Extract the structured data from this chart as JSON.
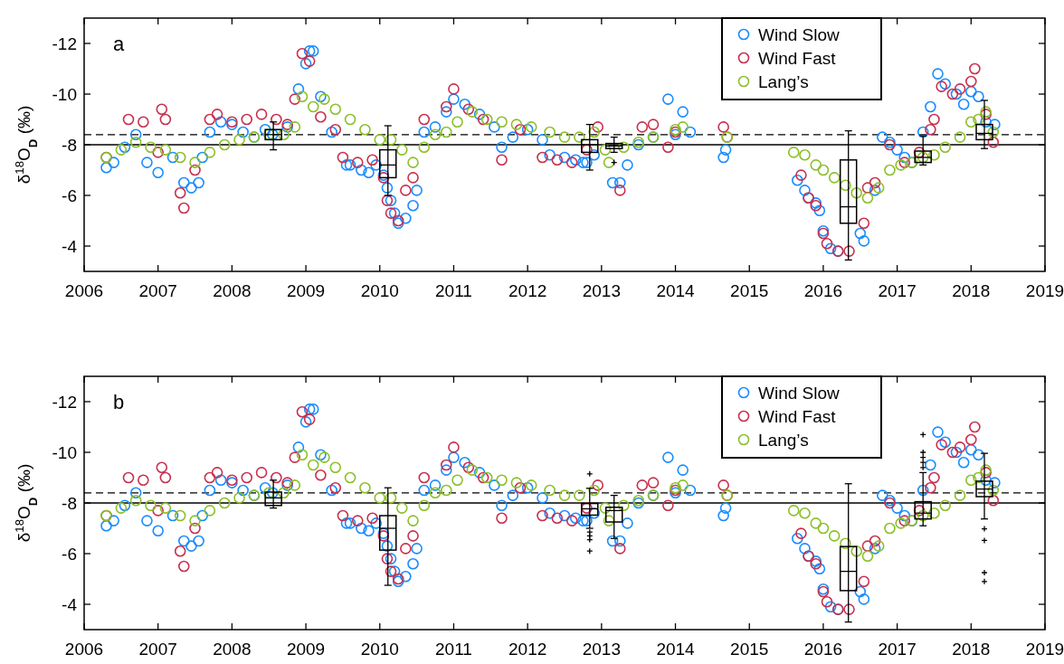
{
  "chart_data": [
    {
      "type": "scatter",
      "ylabel": "δ$^{18}$O$_{D}$ (‰)",
      "xlim": [
        2006,
        2019
      ],
      "xticks": [
        2006,
        2007,
        2008,
        2009,
        2010,
        2011,
        2012,
        2013,
        2014,
        2015,
        2016,
        2017,
        2018,
        2019
      ],
      "ylim": [
        -3,
        -13
      ],
      "yticks": [
        -12,
        -10,
        -8,
        -6,
        -4
      ],
      "marker": "circle",
      "legend": "top right",
      "annotations": [
        "a"
      ],
      "ref_lines": [
        {
          "axis": "y",
          "value": -8,
          "line_style": "solid",
          "color": "#000000"
        },
        {
          "axis": "y",
          "value": -8.4,
          "line_style": "dashed",
          "color": "#000000"
        }
      ],
      "series": [
        {
          "name": "Wind Slow",
          "color": "#1a8cff",
          "x": [
            2006.3,
            2006.4,
            2006.55,
            2006.7,
            2006.85,
            2007.0,
            2007.2,
            2007.35,
            2007.45,
            2007.55,
            2007.6,
            2007.7,
            2007.85,
            2008.0,
            2008.15,
            2008.3,
            2008.45,
            2008.55,
            2008.75,
            2008.9,
            2009.0,
            2009.05,
            2009.1,
            2009.2,
            2009.35,
            2009.55,
            2009.6,
            2009.75,
            2009.85,
            2009.95,
            2010.05,
            2010.1,
            2010.15,
            2010.2,
            2010.25,
            2010.35,
            2010.45,
            2010.5,
            2010.6,
            2010.75,
            2010.9,
            2011.0,
            2011.15,
            2011.35,
            2011.55,
            2011.65,
            2011.8,
            2012.0,
            2012.2,
            2012.3,
            2012.5,
            2012.65,
            2012.75,
            2012.8,
            2012.9,
            2013.15,
            2013.25,
            2013.35,
            2013.5,
            2013.7,
            2013.9,
            2014.0,
            2014.1,
            2014.2,
            2014.65,
            2014.68,
            2015.65,
            2015.75,
            2015.8,
            2015.9,
            2015.95,
            2016.0,
            2016.1,
            2016.2,
            2016.5,
            2016.55,
            2016.7,
            2016.8,
            2016.9,
            2017.0,
            2017.1,
            2017.2,
            2017.35,
            2017.45,
            2017.55,
            2017.65,
            2017.8,
            2017.9,
            2018.0,
            2018.1,
            2018.2,
            2018.32
          ],
          "values": [
            -7.1,
            -7.3,
            -7.9,
            -8.4,
            -7.3,
            -6.9,
            -7.5,
            -6.5,
            -6.3,
            -6.5,
            -7.5,
            -8.5,
            -8.9,
            -8.8,
            -8.5,
            -8.3,
            -8.6,
            -8.4,
            -8.7,
            -10.2,
            -11.2,
            -11.7,
            -11.7,
            -9.9,
            -8.5,
            -7.2,
            -7.2,
            -7.0,
            -6.9,
            -7.2,
            -6.8,
            -6.3,
            -5.8,
            -5.3,
            -4.9,
            -5.1,
            -5.6,
            -6.2,
            -8.5,
            -8.7,
            -9.3,
            -9.8,
            -9.6,
            -9.2,
            -8.7,
            -7.9,
            -8.3,
            -8.6,
            -8.2,
            -7.6,
            -7.5,
            -7.4,
            -7.3,
            -7.3,
            -7.6,
            -6.5,
            -6.5,
            -7.2,
            -8.0,
            -8.3,
            -9.8,
            -8.4,
            -9.3,
            -8.5,
            -7.5,
            -7.8,
            -6.6,
            -6.2,
            -5.9,
            -5.7,
            -5.4,
            -4.6,
            -3.9,
            -3.8,
            -4.5,
            -4.2,
            -6.2,
            -8.3,
            -8.1,
            -7.8,
            -7.5,
            -7.3,
            -8.5,
            -9.5,
            -10.8,
            -10.4,
            -10.0,
            -9.6,
            -10.1,
            -9.9,
            -8.9,
            -8.8
          ]
        },
        {
          "name": "Wind Fast",
          "color": "#c8304f",
          "x": [
            2006.3,
            2006.6,
            2006.8,
            2007.0,
            2007.05,
            2007.1,
            2007.3,
            2007.35,
            2007.5,
            2007.7,
            2007.8,
            2008.0,
            2008.2,
            2008.4,
            2008.6,
            2008.75,
            2008.85,
            2008.95,
            2009.05,
            2009.2,
            2009.4,
            2009.5,
            2009.7,
            2009.9,
            2010.05,
            2010.1,
            2010.15,
            2010.25,
            2010.35,
            2010.45,
            2010.6,
            2010.9,
            2011.0,
            2011.2,
            2011.4,
            2011.65,
            2011.9,
            2012.2,
            2012.4,
            2012.6,
            2012.8,
            2012.95,
            2013.25,
            2013.55,
            2013.7,
            2013.9,
            2014.0,
            2014.65,
            2014.7,
            2015.7,
            2015.8,
            2015.9,
            2016.0,
            2016.05,
            2016.2,
            2016.35,
            2016.55,
            2016.6,
            2016.7,
            2016.9,
            2017.1,
            2017.3,
            2017.45,
            2017.5,
            2017.6,
            2017.75,
            2017.85,
            2018.0,
            2018.05,
            2018.2,
            2018.3
          ],
          "values": [
            -7.5,
            -9.0,
            -8.9,
            -7.7,
            -9.4,
            -9.0,
            -6.1,
            -5.5,
            -7.0,
            -9.0,
            -9.2,
            -8.9,
            -9.0,
            -9.2,
            -9.0,
            -8.8,
            -9.8,
            -11.6,
            -11.3,
            -9.1,
            -8.6,
            -7.5,
            -7.3,
            -7.4,
            -6.7,
            -5.8,
            -5.3,
            -5.0,
            -6.2,
            -6.7,
            -9.0,
            -9.5,
            -10.2,
            -9.4,
            -9.0,
            -7.4,
            -8.6,
            -7.5,
            -7.4,
            -7.3,
            -7.8,
            -8.7,
            -6.2,
            -8.7,
            -8.8,
            -7.9,
            -8.5,
            -8.7,
            -8.3,
            -6.8,
            -5.9,
            -5.6,
            -4.5,
            -4.1,
            -3.8,
            -3.8,
            -4.9,
            -6.3,
            -6.5,
            -8.0,
            -7.3,
            -7.7,
            -8.6,
            -9.0,
            -10.3,
            -10.0,
            -10.2,
            -10.5,
            -11.0,
            -9.2,
            -8.1
          ]
        },
        {
          "name": "Lang’s",
          "color": "#8cbf2a",
          "x": [
            2006.3,
            2006.5,
            2006.7,
            2006.9,
            2007.1,
            2007.3,
            2007.5,
            2007.7,
            2007.9,
            2008.1,
            2008.3,
            2008.5,
            2008.7,
            2008.85,
            2008.95,
            2009.1,
            2009.25,
            2009.4,
            2009.6,
            2009.8,
            2010.0,
            2010.15,
            2010.3,
            2010.45,
            2010.6,
            2010.75,
            2010.9,
            2011.05,
            2011.25,
            2011.45,
            2011.65,
            2011.85,
            2012.05,
            2012.3,
            2012.5,
            2012.7,
            2012.9,
            2013.05,
            2013.1,
            2013.3,
            2013.5,
            2013.7,
            2014.0,
            2014.1,
            2014.7,
            2015.6,
            2015.75,
            2015.9,
            2016.0,
            2016.15,
            2016.3,
            2016.45,
            2016.6,
            2016.75,
            2016.9,
            2017.05,
            2017.2,
            2017.35,
            2017.5,
            2017.65,
            2017.85,
            2018.0,
            2018.1,
            2018.2,
            2018.3
          ],
          "values": [
            -7.5,
            -7.8,
            -8.1,
            -7.9,
            -7.8,
            -7.5,
            -7.3,
            -7.7,
            -8.0,
            -8.2,
            -8.3,
            -8.4,
            -8.4,
            -8.7,
            -9.9,
            -9.5,
            -9.8,
            -9.4,
            -9.0,
            -8.6,
            -8.2,
            -8.2,
            -7.8,
            -7.3,
            -7.9,
            -8.4,
            -8.5,
            -8.9,
            -9.3,
            -9.0,
            -8.9,
            -8.8,
            -8.7,
            -8.5,
            -8.3,
            -8.3,
            -8.5,
            -7.8,
            -7.3,
            -7.9,
            -8.1,
            -8.3,
            -8.6,
            -8.7,
            -8.3,
            -7.7,
            -7.6,
            -7.2,
            -7.0,
            -6.7,
            -6.4,
            -6.1,
            -5.9,
            -6.3,
            -7.0,
            -7.2,
            -7.3,
            -7.5,
            -7.6,
            -7.9,
            -8.3,
            -8.9,
            -9.0,
            -9.3,
            -8.5
          ]
        },
        {
          "type": "box",
          "color": "#000000",
          "x": [
            2008.56,
            2010.11,
            2012.84,
            2013.17,
            2016.34,
            2017.35,
            2018.18
          ],
          "boxes": [
            {
              "low": -7.8,
              "q1": -8.2,
              "median": -8.4,
              "q3": -8.6,
              "high": -8.9
            },
            {
              "low": -6.0,
              "q1": -6.7,
              "median": -7.2,
              "q3": -7.8,
              "high": -8.75
            },
            {
              "low": -7.0,
              "q1": -7.7,
              "median": -8.0,
              "q3": -8.2,
              "high": -8.8
            },
            {
              "low": -7.7,
              "q1": -7.85,
              "median": -7.95,
              "q3": -8.05,
              "high": -8.3,
              "outliers": [
                -7.3
              ]
            },
            {
              "low": -3.45,
              "q1": -4.9,
              "median": -5.55,
              "q3": -7.4,
              "high": -8.55
            },
            {
              "low": -7.2,
              "q1": -7.3,
              "median": -7.5,
              "q3": -7.75,
              "high": -8.35
            },
            {
              "low": -7.85,
              "q1": -8.2,
              "median": -8.45,
              "q3": -8.8,
              "high": -9.75
            }
          ]
        }
      ]
    },
    {
      "type": "scatter",
      "ylabel": "δ$^{18}$O$_{D}$ (‰)",
      "xlim": [
        2006,
        2019
      ],
      "xticks": [
        2006,
        2007,
        2008,
        2009,
        2010,
        2011,
        2012,
        2013,
        2014,
        2015,
        2016,
        2017,
        2018,
        2019
      ],
      "ylim": [
        -3,
        -13
      ],
      "yticks": [
        -12,
        -10,
        -8,
        -6,
        -4
      ],
      "marker": "circle",
      "legend": "top right",
      "annotations": [
        "b"
      ],
      "ref_lines": [
        {
          "axis": "y",
          "value": -8,
          "line_style": "solid",
          "color": "#000000"
        },
        {
          "axis": "y",
          "value": -8.4,
          "line_style": "dashed",
          "color": "#000000"
        }
      ],
      "series": [
        {
          "name": "Wind Slow",
          "color": "#1a8cff",
          "x": [
            2006.3,
            2006.4,
            2006.55,
            2006.7,
            2006.85,
            2007.0,
            2007.2,
            2007.35,
            2007.45,
            2007.55,
            2007.6,
            2007.7,
            2007.85,
            2008.0,
            2008.15,
            2008.3,
            2008.45,
            2008.55,
            2008.75,
            2008.9,
            2009.0,
            2009.05,
            2009.1,
            2009.2,
            2009.35,
            2009.55,
            2009.6,
            2009.75,
            2009.85,
            2009.95,
            2010.05,
            2010.1,
            2010.15,
            2010.2,
            2010.25,
            2010.35,
            2010.45,
            2010.5,
            2010.6,
            2010.75,
            2010.9,
            2011.0,
            2011.15,
            2011.35,
            2011.55,
            2011.65,
            2011.8,
            2012.0,
            2012.2,
            2012.3,
            2012.5,
            2012.65,
            2012.75,
            2012.8,
            2012.9,
            2013.15,
            2013.25,
            2013.35,
            2013.5,
            2013.7,
            2013.9,
            2014.0,
            2014.1,
            2014.2,
            2014.65,
            2014.68,
            2015.65,
            2015.75,
            2015.8,
            2015.9,
            2015.95,
            2016.0,
            2016.1,
            2016.2,
            2016.5,
            2016.55,
            2016.7,
            2016.8,
            2016.9,
            2017.0,
            2017.1,
            2017.2,
            2017.35,
            2017.45,
            2017.55,
            2017.65,
            2017.8,
            2017.9,
            2018.0,
            2018.1,
            2018.2,
            2018.32
          ],
          "values": [
            -7.1,
            -7.3,
            -7.9,
            -8.4,
            -7.3,
            -6.9,
            -7.5,
            -6.5,
            -6.3,
            -6.5,
            -7.5,
            -8.5,
            -8.9,
            -8.8,
            -8.5,
            -8.3,
            -8.6,
            -8.4,
            -8.7,
            -10.2,
            -11.2,
            -11.7,
            -11.7,
            -9.9,
            -8.5,
            -7.2,
            -7.2,
            -7.0,
            -6.9,
            -7.2,
            -6.8,
            -6.3,
            -5.8,
            -5.3,
            -4.9,
            -5.1,
            -5.6,
            -6.2,
            -8.5,
            -8.7,
            -9.3,
            -9.8,
            -9.6,
            -9.2,
            -8.7,
            -7.9,
            -8.3,
            -8.6,
            -8.2,
            -7.6,
            -7.5,
            -7.4,
            -7.3,
            -7.3,
            -7.6,
            -6.5,
            -6.5,
            -7.2,
            -8.0,
            -8.3,
            -9.8,
            -8.4,
            -9.3,
            -8.5,
            -7.5,
            -7.8,
            -6.6,
            -6.2,
            -5.9,
            -5.7,
            -5.4,
            -4.6,
            -3.9,
            -3.8,
            -4.5,
            -4.2,
            -6.2,
            -8.3,
            -8.1,
            -7.8,
            -7.5,
            -7.3,
            -8.5,
            -9.5,
            -10.8,
            -10.4,
            -10.0,
            -9.6,
            -10.1,
            -9.9,
            -8.9,
            -8.8
          ]
        },
        {
          "name": "Wind Fast",
          "color": "#c8304f",
          "x": [
            2006.3,
            2006.6,
            2006.8,
            2007.0,
            2007.05,
            2007.1,
            2007.3,
            2007.35,
            2007.5,
            2007.7,
            2007.8,
            2008.0,
            2008.2,
            2008.4,
            2008.6,
            2008.75,
            2008.85,
            2008.95,
            2009.05,
            2009.2,
            2009.4,
            2009.5,
            2009.7,
            2009.9,
            2010.05,
            2010.1,
            2010.15,
            2010.25,
            2010.35,
            2010.45,
            2010.6,
            2010.9,
            2011.0,
            2011.2,
            2011.4,
            2011.65,
            2011.9,
            2012.2,
            2012.4,
            2012.6,
            2012.8,
            2012.95,
            2013.25,
            2013.55,
            2013.7,
            2013.9,
            2014.0,
            2014.65,
            2014.7,
            2015.7,
            2015.8,
            2015.9,
            2016.0,
            2016.05,
            2016.2,
            2016.35,
            2016.55,
            2016.6,
            2016.7,
            2016.9,
            2017.1,
            2017.3,
            2017.45,
            2017.5,
            2017.6,
            2017.75,
            2017.85,
            2018.0,
            2018.05,
            2018.2,
            2018.3
          ],
          "values": [
            -7.5,
            -9.0,
            -8.9,
            -7.7,
            -9.4,
            -9.0,
            -6.1,
            -5.5,
            -7.0,
            -9.0,
            -9.2,
            -8.9,
            -9.0,
            -9.2,
            -9.0,
            -8.8,
            -9.8,
            -11.6,
            -11.3,
            -9.1,
            -8.6,
            -7.5,
            -7.3,
            -7.4,
            -6.7,
            -5.8,
            -5.3,
            -5.0,
            -6.2,
            -6.7,
            -9.0,
            -9.5,
            -10.2,
            -9.4,
            -9.0,
            -7.4,
            -8.6,
            -7.5,
            -7.4,
            -7.3,
            -7.8,
            -8.7,
            -6.2,
            -8.7,
            -8.8,
            -7.9,
            -8.5,
            -8.7,
            -8.3,
            -6.8,
            -5.9,
            -5.6,
            -4.5,
            -4.1,
            -3.8,
            -3.8,
            -4.9,
            -6.3,
            -6.5,
            -8.0,
            -7.3,
            -7.7,
            -8.6,
            -9.0,
            -10.3,
            -10.0,
            -10.2,
            -10.5,
            -11.0,
            -9.2,
            -8.1
          ]
        },
        {
          "name": "Lang’s",
          "color": "#8cbf2a",
          "x": [
            2006.3,
            2006.5,
            2006.7,
            2006.9,
            2007.1,
            2007.3,
            2007.5,
            2007.7,
            2007.9,
            2008.1,
            2008.3,
            2008.5,
            2008.7,
            2008.85,
            2008.95,
            2009.1,
            2009.25,
            2009.4,
            2009.6,
            2009.8,
            2010.0,
            2010.15,
            2010.3,
            2010.45,
            2010.6,
            2010.75,
            2010.9,
            2011.05,
            2011.25,
            2011.45,
            2011.65,
            2011.85,
            2012.05,
            2012.3,
            2012.5,
            2012.7,
            2012.9,
            2013.05,
            2013.1,
            2013.3,
            2013.5,
            2013.7,
            2014.0,
            2014.1,
            2014.7,
            2015.6,
            2015.75,
            2015.9,
            2016.0,
            2016.15,
            2016.3,
            2016.45,
            2016.6,
            2016.75,
            2016.9,
            2017.05,
            2017.2,
            2017.35,
            2017.5,
            2017.65,
            2017.85,
            2018.0,
            2018.1,
            2018.2,
            2018.3
          ],
          "values": [
            -7.5,
            -7.8,
            -8.1,
            -7.9,
            -7.8,
            -7.5,
            -7.3,
            -7.7,
            -8.0,
            -8.2,
            -8.3,
            -8.4,
            -8.4,
            -8.7,
            -9.9,
            -9.5,
            -9.8,
            -9.4,
            -9.0,
            -8.6,
            -8.2,
            -8.2,
            -7.8,
            -7.3,
            -7.9,
            -8.4,
            -8.5,
            -8.9,
            -9.3,
            -9.0,
            -8.9,
            -8.8,
            -8.7,
            -8.5,
            -8.3,
            -8.3,
            -8.5,
            -7.8,
            -7.3,
            -7.9,
            -8.1,
            -8.3,
            -8.6,
            -8.7,
            -8.3,
            -7.7,
            -7.6,
            -7.2,
            -7.0,
            -6.7,
            -6.4,
            -6.1,
            -5.9,
            -6.3,
            -7.0,
            -7.2,
            -7.3,
            -7.5,
            -7.6,
            -7.9,
            -8.3,
            -8.9,
            -9.0,
            -9.3,
            -8.5
          ]
        },
        {
          "type": "box",
          "color": "#000000",
          "x": [
            2008.56,
            2010.11,
            2012.84,
            2013.17,
            2016.34,
            2017.35,
            2018.18
          ],
          "boxes": [
            {
              "low": -7.8,
              "q1": -7.9,
              "median": -8.2,
              "q3": -8.43,
              "high": -8.9
            },
            {
              "low": -4.75,
              "q1": -6.14,
              "median": -7.0,
              "q3": -7.5,
              "high": -8.6
            },
            {
              "low": -7.0,
              "q1": -7.52,
              "median": -7.77,
              "q3": -7.98,
              "high": -8.58,
              "outliers": [
                -9.15,
                -6.85,
                -6.7,
                -6.55,
                -6.1
              ]
            },
            {
              "low": -6.6,
              "q1": -7.25,
              "median": -7.7,
              "q3": -7.83,
              "high": -8.3
            },
            {
              "low": -3.3,
              "q1": -4.54,
              "median": -5.3,
              "q3": -6.28,
              "high": -8.76
            },
            {
              "low": -7.1,
              "q1": -7.37,
              "median": -7.6,
              "q3": -8.05,
              "high": -9.2,
              "outliers": [
                -9.4,
                -9.6,
                -9.8,
                -10.0,
                -10.7
              ]
            },
            {
              "low": -7.37,
              "q1": -8.25,
              "median": -8.55,
              "q3": -8.86,
              "high": -9.96,
              "outliers": [
                -6.98,
                -6.52,
                -5.25,
                -4.9
              ]
            }
          ]
        }
      ]
    }
  ]
}
